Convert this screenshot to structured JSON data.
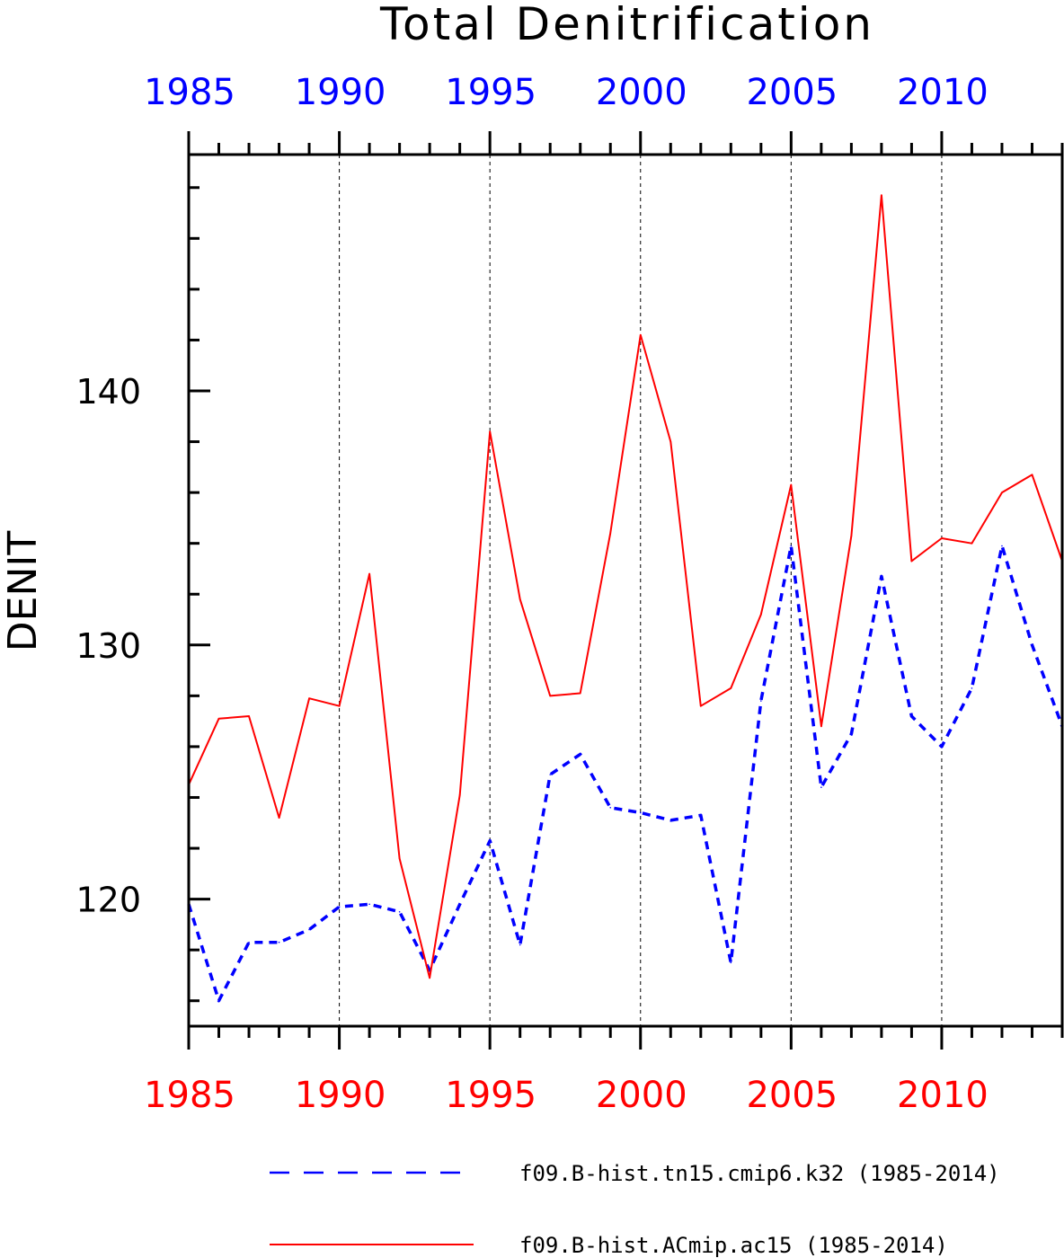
{
  "chart_data": {
    "type": "line",
    "title": "Total Denitrification",
    "ylabel": "DENIT",
    "xlabel": "",
    "xlim": [
      1985,
      2014
    ],
    "ylim": [
      115,
      149.3
    ],
    "x_major_ticks": [
      1985,
      1990,
      1995,
      2000,
      2005,
      2010
    ],
    "y_major_ticks": [
      120,
      130,
      140
    ],
    "y_minor_step": 2,
    "x_minor_step": 1,
    "grid": "vertical dashed at major x ticks",
    "top_axis_color": "#0000ff",
    "bottom_axis_color": "#ff0000",
    "legend_position": "bottom",
    "x": [
      1985,
      1986,
      1987,
      1988,
      1989,
      1990,
      1991,
      1992,
      1993,
      1994,
      1995,
      1996,
      1997,
      1998,
      1999,
      2000,
      2001,
      2002,
      2003,
      2004,
      2005,
      2006,
      2007,
      2008,
      2009,
      2010,
      2011,
      2012,
      2013,
      2014
    ],
    "series": [
      {
        "name": "f09.B-hist.tn15.cmip6.k32 (1985-2014)",
        "color": "#0000ff",
        "style": "dashed",
        "values": [
          119.8,
          116.0,
          118.3,
          118.3,
          118.8,
          119.7,
          119.8,
          119.5,
          117.2,
          119.8,
          122.3,
          118.2,
          124.9,
          125.7,
          123.6,
          123.4,
          123.1,
          123.3,
          117.5,
          127.8,
          133.9,
          124.4,
          126.5,
          132.7,
          127.2,
          126.0,
          128.3,
          133.9,
          130.0,
          126.8
        ]
      },
      {
        "name": "f09.B-hist.ACmip.ac15 (1985-2014)",
        "color": "#ff0000",
        "style": "solid",
        "values": [
          124.5,
          127.1,
          127.2,
          123.2,
          127.9,
          127.6,
          132.8,
          121.6,
          116.9,
          124.1,
          138.4,
          131.8,
          128.0,
          128.1,
          134.4,
          142.2,
          138.0,
          127.6,
          128.3,
          131.2,
          136.3,
          126.8,
          134.3,
          147.7,
          133.3,
          134.2,
          134.0,
          136.0,
          136.7,
          133.3
        ]
      }
    ]
  }
}
